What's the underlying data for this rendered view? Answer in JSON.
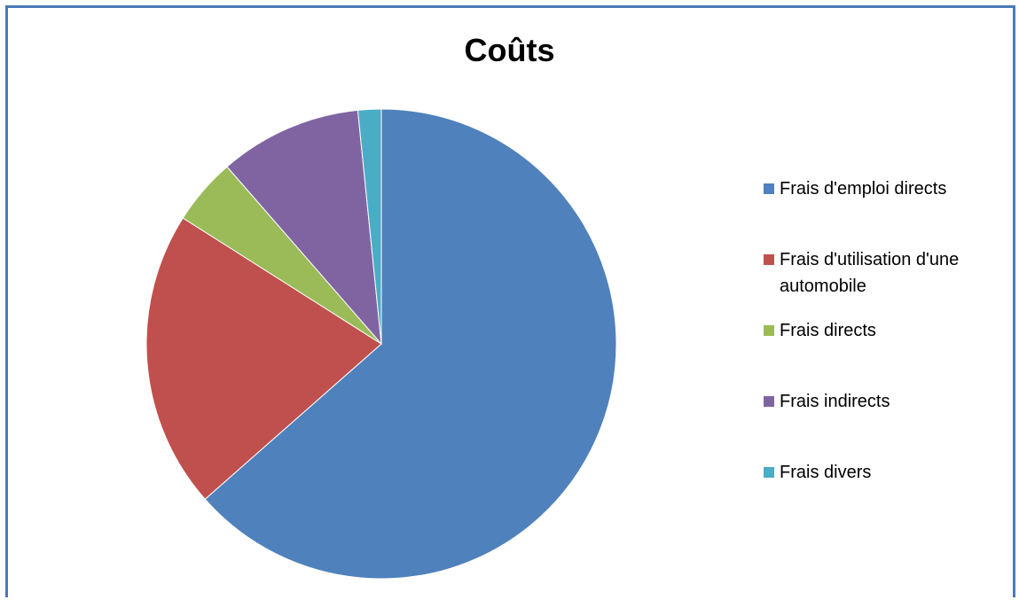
{
  "chart_data": {
    "type": "pie",
    "title": "Coûts",
    "legend_position": "right",
    "slices": [
      {
        "label": "Frais d'emploi directs",
        "value": 63.5,
        "color": "#4f81bd"
      },
      {
        "label": "Frais d'utilisation d'une automobile",
        "value": 20.5,
        "color": "#c0504d"
      },
      {
        "label": "Frais directs",
        "value": 4.6,
        "color": "#9bbb59"
      },
      {
        "label": "Frais indirects",
        "value": 9.8,
        "color": "#8064a2"
      },
      {
        "label": "Frais divers",
        "value": 1.6,
        "color": "#4bacc6"
      }
    ]
  }
}
